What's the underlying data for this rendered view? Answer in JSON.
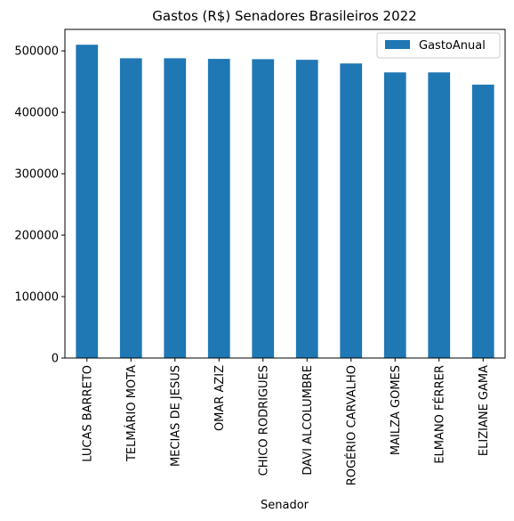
{
  "chart_data": {
    "type": "bar",
    "title": "Gastos (R$) Senadores Brasileiros 2022",
    "xlabel": "Senador",
    "ylabel": "",
    "categories": [
      "LUCAS BARRETO",
      "TELMÁRIO MOTA",
      "MECIAS DE JESUS",
      "OMAR AZIZ",
      "CHICO RODRIGUES",
      "DAVI ALCOLUMBRE",
      "ROGÉRIO CARVALHO",
      "MAILZA GOMES",
      "ELMANO FÉRRER",
      "ELIZIANE GAMA"
    ],
    "series": [
      {
        "name": "GastoAnual",
        "color": "#1f77b4",
        "values": [
          510000,
          488000,
          488000,
          487000,
          486500,
          485500,
          479500,
          465000,
          465000,
          445000
        ]
      }
    ],
    "ylim": [
      0,
      535000
    ],
    "yticks": [
      0,
      100000,
      200000,
      300000,
      400000,
      500000
    ],
    "ytick_labels": [
      "0",
      "100000",
      "200000",
      "300000",
      "400000",
      "500000"
    ],
    "legend_position": "top-right",
    "grid": false
  }
}
